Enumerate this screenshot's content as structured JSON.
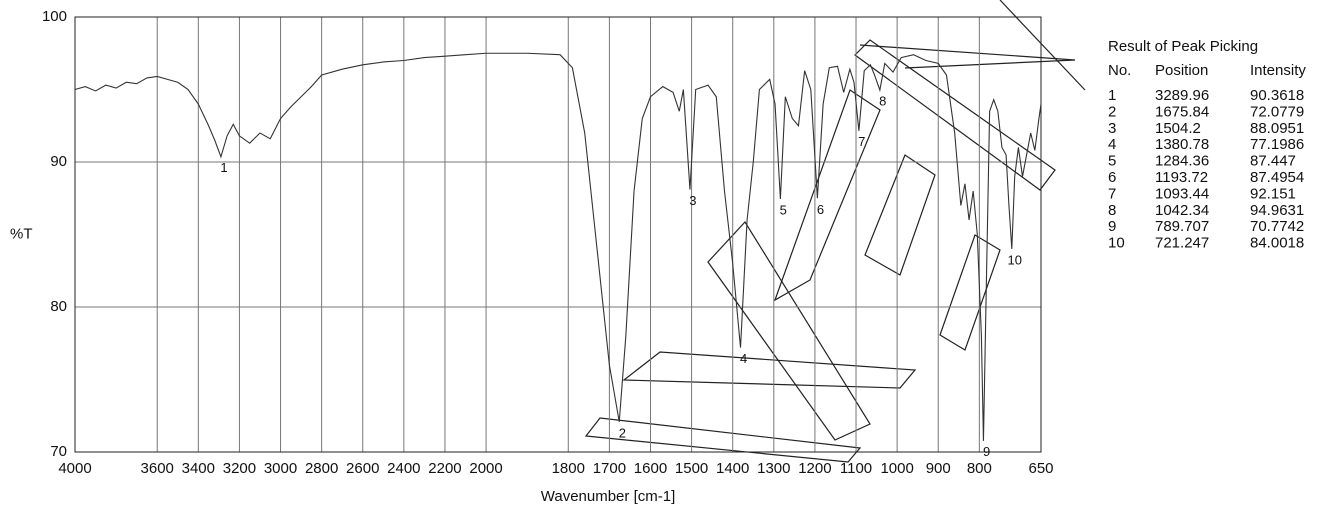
{
  "chart_data": {
    "type": "line",
    "xlabel": "Wavenumber [cm-1]",
    "ylabel": "%T",
    "xlim": [
      4000,
      650
    ],
    "xbreak": 2000,
    "xticks": [
      4000,
      3600,
      3400,
      3200,
      3000,
      2800,
      2600,
      2400,
      2200,
      2000,
      1800,
      1700,
      1600,
      1500,
      1400,
      1300,
      1200,
      1100,
      1000,
      900,
      800,
      650
    ],
    "ylim": [
      70,
      100
    ],
    "yticks": [
      70,
      80,
      90,
      100
    ],
    "grid": true,
    "x": [
      4000,
      3950,
      3900,
      3850,
      3800,
      3750,
      3700,
      3650,
      3600,
      3550,
      3500,
      3450,
      3400,
      3350,
      3320,
      3290,
      3260,
      3230,
      3200,
      3150,
      3100,
      3050,
      3000,
      2950,
      2900,
      2850,
      2800,
      2700,
      2600,
      2500,
      2400,
      2300,
      2200,
      2100,
      2000,
      1900,
      1820,
      1790,
      1760,
      1730,
      1700,
      1676,
      1660,
      1640,
      1620,
      1600,
      1570,
      1545,
      1530,
      1520,
      1504,
      1490,
      1460,
      1440,
      1420,
      1400,
      1381,
      1365,
      1350,
      1335,
      1310,
      1297,
      1284,
      1272,
      1255,
      1240,
      1225,
      1210,
      1194,
      1180,
      1165,
      1145,
      1130,
      1115,
      1105,
      1093,
      1080,
      1065,
      1055,
      1042,
      1030,
      1010,
      990,
      960,
      930,
      900,
      880,
      860,
      845,
      835,
      825,
      815,
      805,
      795,
      790,
      784,
      775,
      765,
      755,
      745,
      735,
      728,
      721,
      714,
      705,
      695,
      685,
      675,
      665,
      655,
      650
    ],
    "series": [
      {
        "color": "#333333",
        "values": [
          95.0,
          95.2,
          94.9,
          95.3,
          95.1,
          95.5,
          95.4,
          95.8,
          95.9,
          95.7,
          95.5,
          95.0,
          94.0,
          92.5,
          91.5,
          90.36,
          91.8,
          92.6,
          91.8,
          91.3,
          92.0,
          91.6,
          93.0,
          93.8,
          94.5,
          95.2,
          96.0,
          96.4,
          96.7,
          96.9,
          97.0,
          97.2,
          97.3,
          97.4,
          97.5,
          97.5,
          97.4,
          96.5,
          92,
          84,
          76,
          72.08,
          78,
          88,
          93,
          94.5,
          95.2,
          94.8,
          93.5,
          95.0,
          88.1,
          95.0,
          95.3,
          94.5,
          88,
          83,
          77.2,
          86,
          90,
          95,
          95.7,
          94,
          87.45,
          94.5,
          93,
          92.5,
          96.3,
          95,
          87.5,
          94,
          96.5,
          96.6,
          94.8,
          96.4,
          95.5,
          92.15,
          96.3,
          96.7,
          96.0,
          94.96,
          96.8,
          96.2,
          97.2,
          97.4,
          97.0,
          96.8,
          96.0,
          92,
          87,
          88.5,
          86,
          88,
          85,
          78,
          70.77,
          80,
          93.5,
          94.3,
          93.5,
          91,
          90.5,
          87,
          84.0,
          89,
          91,
          89,
          90.5,
          92,
          90.8,
          93,
          94
        ]
      }
    ]
  },
  "table": {
    "title": "Result of Peak Picking",
    "columns": [
      "No.",
      "Position",
      "Intensity"
    ],
    "rows": [
      [
        1,
        3289.96,
        90.3618
      ],
      [
        2,
        1675.84,
        72.0779
      ],
      [
        3,
        1504.2,
        88.0951
      ],
      [
        4,
        1380.78,
        77.1986
      ],
      [
        5,
        1284.36,
        87.447
      ],
      [
        6,
        1193.72,
        87.4954
      ],
      [
        7,
        1093.44,
        92.151
      ],
      [
        8,
        1042.34,
        94.9631
      ],
      [
        9,
        789.707,
        70.7742
      ],
      [
        10,
        721.247,
        84.0018
      ]
    ]
  }
}
